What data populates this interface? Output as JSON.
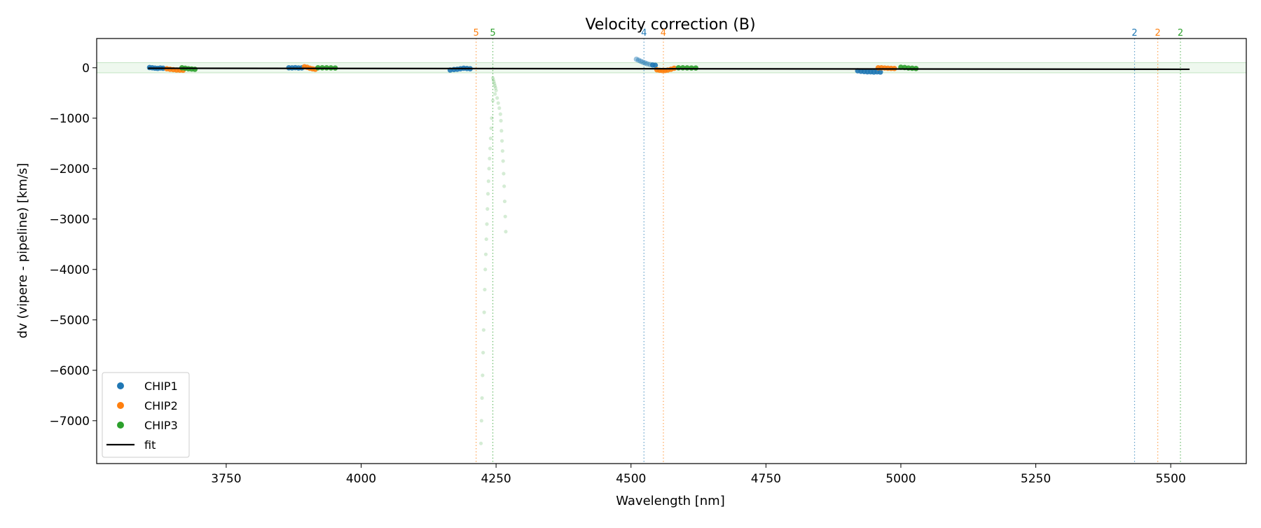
{
  "chart_data": {
    "type": "scatter",
    "title": "Velocity correction (B)",
    "xlabel": "Wavelength [nm]",
    "ylabel": "dv (vipere - pipeline) [km/s]",
    "xlim": [
      3510,
      5640
    ],
    "ylim": [
      -7850,
      580
    ],
    "xticks": [
      3750,
      4000,
      4250,
      4500,
      4750,
      5000,
      5250,
      5500
    ],
    "yticks": [
      0,
      -1000,
      -2000,
      -3000,
      -4000,
      -5000,
      -6000,
      -7000
    ],
    "grid": false,
    "legend": {
      "placement": "lower-left",
      "entries": [
        {
          "label": "CHIP1",
          "marker": "dot",
          "color": "#1f77b4"
        },
        {
          "label": "CHIP2",
          "marker": "dot",
          "color": "#ff7f0e"
        },
        {
          "label": "CHIP3",
          "marker": "dot",
          "color": "#2ca02c"
        },
        {
          "label": "fit",
          "marker": "line",
          "color": "#000000"
        }
      ]
    },
    "band": {
      "y": [
        -100,
        100
      ],
      "color": "#2ca02c"
    },
    "fit": {
      "x": [
        3605,
        5535
      ],
      "y": [
        -10,
        -30
      ],
      "color": "#000000"
    },
    "order_markers": [
      {
        "x": 4213,
        "label": "5",
        "color": "#ff7f0e"
      },
      {
        "x": 4244,
        "label": "5",
        "color": "#2ca02c"
      },
      {
        "x": 4524,
        "label": "4",
        "color": "#1f77b4"
      },
      {
        "x": 4560,
        "label": "4",
        "color": "#ff7f0e"
      },
      {
        "x": 5433,
        "label": "2",
        "color": "#1f77b4"
      },
      {
        "x": 5476,
        "label": "2",
        "color": "#ff7f0e"
      },
      {
        "x": 5518,
        "label": "2",
        "color": "#2ca02c"
      }
    ],
    "series": [
      {
        "name": "CHIP1",
        "color": "#1f77b4",
        "points": [
          [
            3608,
            5
          ],
          [
            3613,
            0
          ],
          [
            3618,
            -8
          ],
          [
            3623,
            -12
          ],
          [
            3628,
            -5
          ],
          [
            3633,
            -10
          ],
          [
            3866,
            0
          ],
          [
            3872,
            -3
          ],
          [
            3878,
            2
          ],
          [
            3884,
            -4
          ],
          [
            3890,
            -2
          ],
          [
            4165,
            -45
          ],
          [
            4172,
            -35
          ],
          [
            4178,
            -30
          ],
          [
            4184,
            -20
          ],
          [
            4190,
            -10
          ],
          [
            4196,
            -15
          ],
          [
            4202,
            -20
          ],
          [
            4510,
            170
          ],
          [
            4514,
            150
          ],
          [
            4518,
            130
          ],
          [
            4522,
            110
          ],
          [
            4526,
            95
          ],
          [
            4530,
            80
          ],
          [
            4535,
            65
          ],
          [
            4540,
            55
          ],
          [
            4545,
            50
          ],
          [
            4920,
            -60
          ],
          [
            4926,
            -70
          ],
          [
            4932,
            -75
          ],
          [
            4938,
            -80
          ],
          [
            4944,
            -80
          ],
          [
            4950,
            -85
          ],
          [
            4956,
            -80
          ],
          [
            4962,
            -85
          ]
        ]
      },
      {
        "name": "CHIP2",
        "color": "#ff7f0e",
        "points": [
          [
            3640,
            -20
          ],
          [
            3646,
            -30
          ],
          [
            3652,
            -38
          ],
          [
            3658,
            -45
          ],
          [
            3664,
            -48
          ],
          [
            3670,
            -50
          ],
          [
            3895,
            20
          ],
          [
            3900,
            10
          ],
          [
            3905,
            -10
          ],
          [
            3910,
            -22
          ],
          [
            3915,
            -30
          ],
          [
            4548,
            -40
          ],
          [
            4553,
            -50
          ],
          [
            4558,
            -55
          ],
          [
            4563,
            -55
          ],
          [
            4568,
            -45
          ],
          [
            4574,
            -30
          ],
          [
            4580,
            -10
          ],
          [
            4958,
            0
          ],
          [
            4964,
            0
          ],
          [
            4970,
            -5
          ],
          [
            4976,
            -10
          ],
          [
            4982,
            -12
          ],
          [
            4988,
            -15
          ]
        ]
      },
      {
        "name": "CHIP3",
        "color": "#2ca02c",
        "points": [
          [
            3668,
            0
          ],
          [
            3674,
            -10
          ],
          [
            3680,
            -20
          ],
          [
            3686,
            -25
          ],
          [
            3692,
            -30
          ],
          [
            3920,
            0
          ],
          [
            3928,
            0
          ],
          [
            3936,
            0
          ],
          [
            3944,
            -3
          ],
          [
            3952,
            -5
          ],
          [
            4588,
            0
          ],
          [
            4596,
            0
          ],
          [
            4604,
            -3
          ],
          [
            4612,
            -5
          ],
          [
            4620,
            -5
          ],
          [
            5000,
            10
          ],
          [
            5007,
            5
          ],
          [
            5014,
            -5
          ],
          [
            5021,
            -10
          ],
          [
            5028,
            -15
          ],
          [
            4244,
            -200
          ],
          [
            4245,
            -240
          ],
          [
            4246,
            -280
          ],
          [
            4247,
            -320
          ],
          [
            4248,
            -360
          ],
          [
            4249,
            -400
          ],
          [
            4250,
            -450
          ],
          [
            4248,
            -520
          ],
          [
            4252,
            -600
          ],
          [
            4254,
            -700
          ],
          [
            4256,
            -800
          ],
          [
            4258,
            -920
          ],
          [
            4259,
            -1050
          ],
          [
            4260,
            -1250
          ],
          [
            4261,
            -1450
          ],
          [
            4262,
            -1650
          ],
          [
            4263,
            -1850
          ],
          [
            4264,
            -2100
          ],
          [
            4265,
            -2350
          ],
          [
            4266,
            -2650
          ],
          [
            4267,
            -2950
          ],
          [
            4268,
            -3250
          ],
          [
            4244,
            -650
          ],
          [
            4242,
            -1000
          ],
          [
            4241,
            -1200
          ],
          [
            4240,
            -1400
          ],
          [
            4239,
            -1600
          ],
          [
            4238,
            -1800
          ],
          [
            4237,
            -2000
          ],
          [
            4236,
            -2250
          ],
          [
            4235,
            -2500
          ],
          [
            4234,
            -2800
          ],
          [
            4233,
            -3100
          ],
          [
            4232,
            -3400
          ],
          [
            4231,
            -3700
          ],
          [
            4230,
            -4000
          ],
          [
            4229,
            -4400
          ],
          [
            4228,
            -4850
          ],
          [
            4227,
            -5200
          ],
          [
            4226,
            -5650
          ],
          [
            4225,
            -6100
          ],
          [
            4224,
            -6550
          ],
          [
            4223,
            -7000
          ],
          [
            4222,
            -7450
          ]
        ]
      }
    ]
  }
}
